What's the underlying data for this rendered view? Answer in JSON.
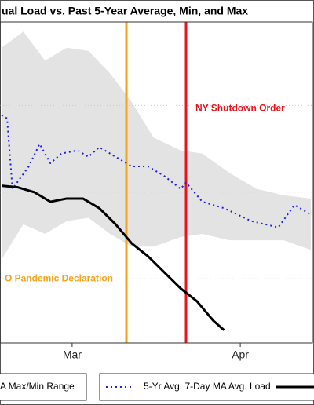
{
  "chart_data": {
    "type": "line",
    "title": "ual Load vs. Past 5-Year Average, Min, and Max",
    "xlim": [
      -13.3,
      44.3
    ],
    "xticks": [
      {
        "value": 0,
        "label": "Mar"
      },
      {
        "value": 31,
        "label": "Apr"
      }
    ],
    "ylim": [
      0,
      100
    ],
    "yticks": [
      20,
      47,
      74
    ],
    "grid": true,
    "band": {
      "name": "A Max/Min Range",
      "color": "#e3e3e3",
      "x": [
        -13,
        -9,
        -5,
        -1,
        3,
        7,
        11,
        15,
        20,
        24,
        29,
        34,
        39,
        44
      ],
      "upper": [
        92,
        97,
        88,
        92,
        91,
        84,
        75,
        64,
        60,
        59,
        53,
        48,
        46,
        45
      ],
      "lower": [
        26,
        37,
        34,
        38,
        39,
        34,
        30,
        30,
        33,
        34,
        32,
        32,
        32,
        29
      ]
    },
    "series": [
      {
        "name": "5-Yr Avg. 7-Day MA Avg. Load",
        "color": "#1f1fe0",
        "dash": true,
        "x": [
          -13,
          -12,
          -11,
          -8,
          -6,
          -4,
          -2,
          1,
          3,
          5,
          8,
          11,
          14,
          17,
          20,
          21,
          24,
          28,
          33,
          38,
          41,
          44
        ],
        "values": [
          71,
          70,
          48,
          55,
          62,
          56,
          59,
          60,
          58,
          61,
          58,
          55,
          55,
          52,
          48,
          50,
          44,
          42,
          38,
          36,
          43,
          40
        ]
      },
      {
        "color": "#000000",
        "x": [
          -13,
          -10,
          -7,
          -4,
          -1,
          2,
          5,
          8,
          11,
          14,
          17,
          20,
          23,
          26,
          28
        ],
        "values": [
          49,
          48.5,
          47,
          44,
          45,
          45,
          42,
          37,
          31,
          27,
          22,
          17,
          13,
          7,
          4
        ]
      }
    ],
    "annotations": [
      {
        "x": 10,
        "color": "#f5a31a",
        "text": "O Pandemic Declaration",
        "y": 20
      },
      {
        "x": 21,
        "color": "#e8141c",
        "text": "NY Shutdown Order",
        "y": 73
      }
    ]
  }
}
